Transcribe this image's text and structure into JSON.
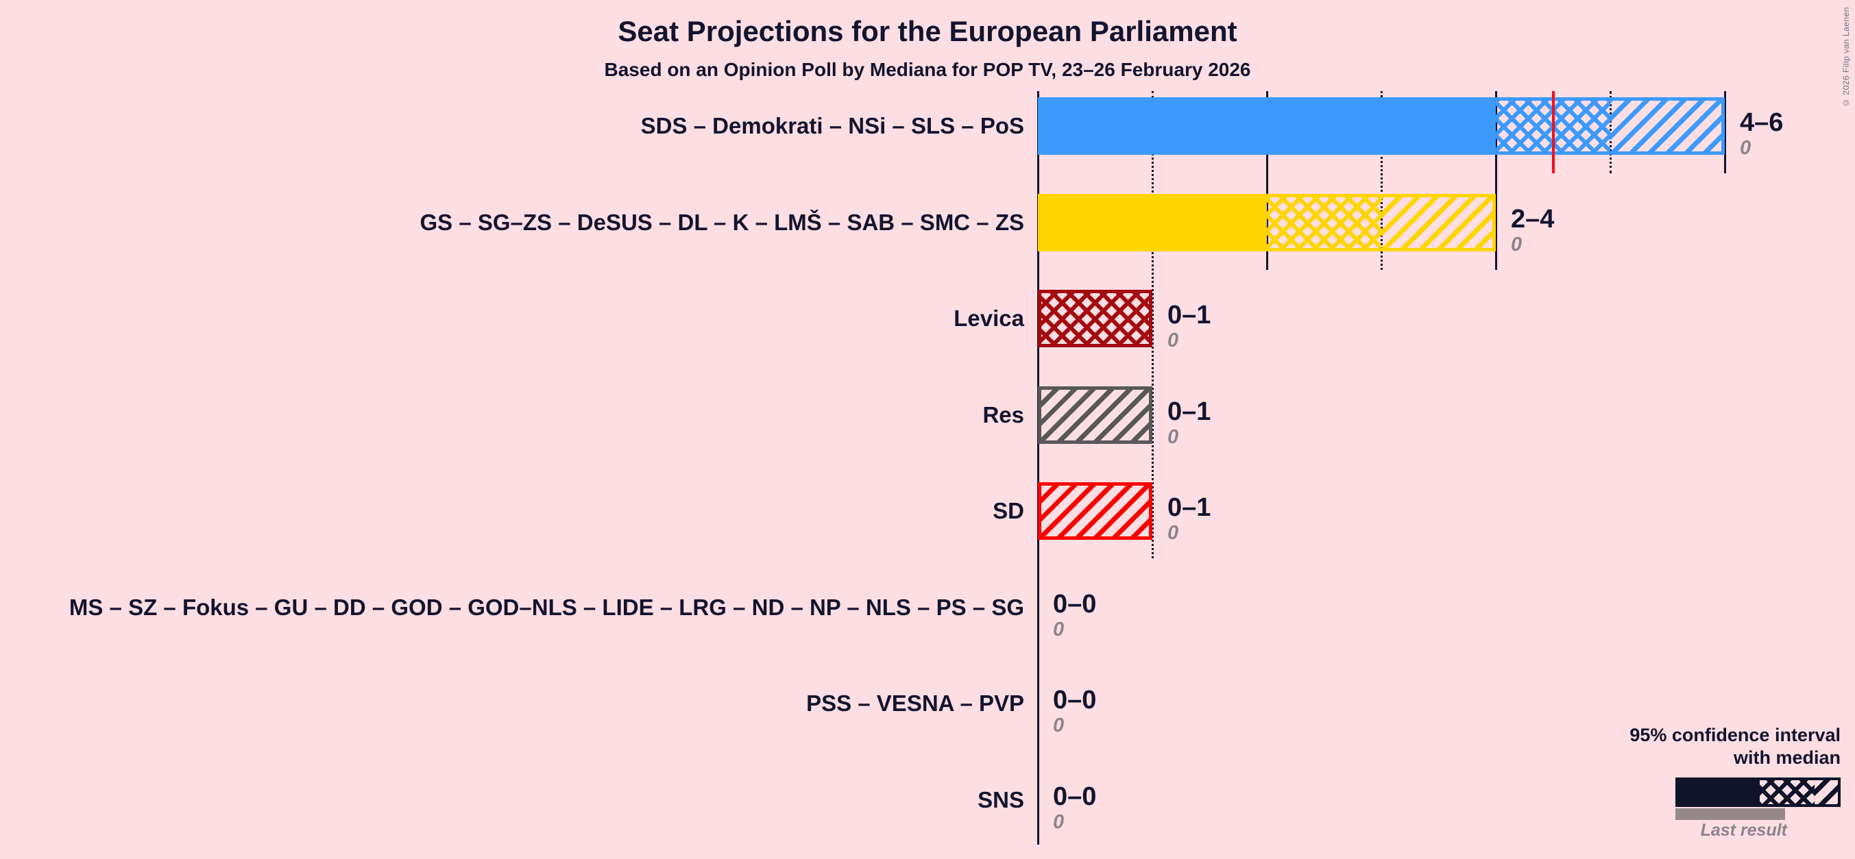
{
  "header": {
    "title": "Seat Projections for the European Parliament",
    "subtitle": "Based on an Opinion Poll by Mediana for POP TV, 23–26 February 2026"
  },
  "legend": {
    "ci_label_line1": "95% confidence interval",
    "ci_label_line2": "with median",
    "last_result_label": "Last result"
  },
  "copyright_notice": "© 2026 Filip van Laenen",
  "colors": {
    "background": "#fcdee3",
    "text": "#13142e",
    "muted_text": "#8b858d",
    "axis": "#13142e",
    "majority_line": "#f30e1c",
    "legend_sample": "#10132a",
    "last_result_bar": "#97898a"
  },
  "chart_data": {
    "type": "bar",
    "orientation": "horizontal",
    "title": "Seat Projections for the European Parliament",
    "subtitle": "Based on an Opinion Poll by Mediana for POP TV, 23–26 February 2026",
    "x_axis": {
      "unit": "seats",
      "min": 0,
      "max": 6,
      "gridline_step": 1,
      "majority_threshold": 4.5,
      "tick_labels_shown": false
    },
    "legend_note": "Solid = lower bound, crosshatch = up to median, diagonal hatch = upper bound of 95% confidence interval; red line = majority threshold",
    "rows": [
      {
        "party": "SDS – Demokrati – NSi – SLS – PoS",
        "color": "#3d9afc",
        "low": 4,
        "median": 5,
        "high": 6,
        "ci_label": "4–6",
        "last_result": "0"
      },
      {
        "party": "GS – SG–ZS – DeSUS – DL – K – LMŠ – SAB – SMC – ZS",
        "color": "#ffd500",
        "low": 2,
        "median": 3,
        "high": 4,
        "ci_label": "2–4",
        "last_result": "0"
      },
      {
        "party": "Levica",
        "color": "#a30c10",
        "low": 0,
        "median": 1,
        "high": 1,
        "ci_label": "0–1",
        "last_result": "0"
      },
      {
        "party": "Res",
        "color": "#585858",
        "low": 0,
        "median": 0,
        "high": 1,
        "ci_label": "0–1",
        "last_result": "0"
      },
      {
        "party": "SD",
        "color": "#f80400",
        "low": 0,
        "median": 0,
        "high": 1,
        "ci_label": "0–1",
        "last_result": "0"
      },
      {
        "party": "MS – SZ – Fokus – GU – DD – GOD – GOD–NLS – LIDE – LRG – ND – NP – NLS – PS – SG",
        "color": null,
        "low": 0,
        "median": 0,
        "high": 0,
        "ci_label": "0–0",
        "last_result": "0"
      },
      {
        "party": "PSS – VESNA – PVP",
        "color": null,
        "low": 0,
        "median": 0,
        "high": 0,
        "ci_label": "0–0",
        "last_result": "0"
      },
      {
        "party": "SNS",
        "color": null,
        "low": 0,
        "median": 0,
        "high": 0,
        "ci_label": "0–0",
        "last_result": "0"
      }
    ]
  }
}
